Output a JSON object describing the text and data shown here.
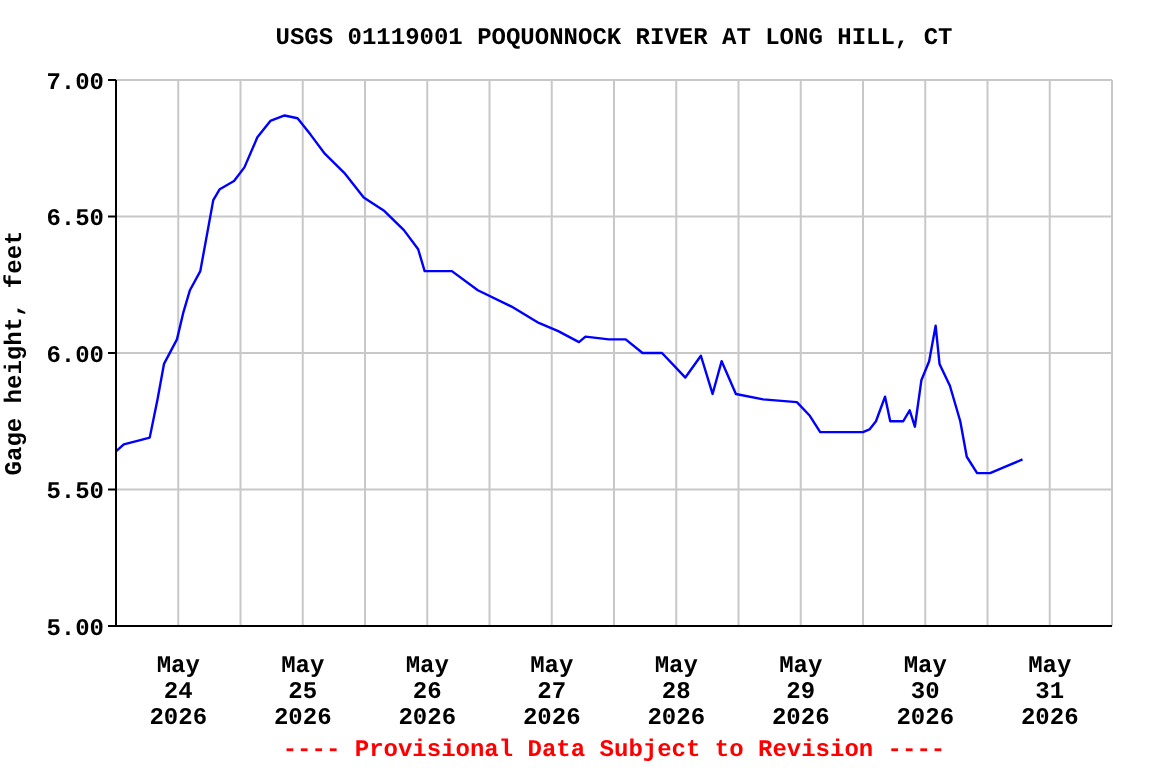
{
  "chart_data": {
    "type": "line",
    "title": "USGS 01119001 POQUONNOCK RIVER AT LONG HILL, CT",
    "ylabel": "Gage height, feet",
    "annotations": [
      "---- Provisional Data Subject to Revision ----"
    ],
    "x": [
      "2026-05-24T00:00",
      "2026-05-24T01:30",
      "2026-05-24T04:30",
      "2026-05-24T06:30",
      "2026-05-24T08:00",
      "2026-05-24T09:15",
      "2026-05-24T11:45",
      "2026-05-24T13:00",
      "2026-05-24T14:15",
      "2026-05-24T16:15",
      "2026-05-24T17:30",
      "2026-05-24T18:45",
      "2026-05-24T20:00",
      "2026-05-24T22:45",
      "2026-05-25T00:45",
      "2026-05-25T03:15",
      "2026-05-25T05:45",
      "2026-05-25T08:30",
      "2026-05-25T11:00",
      "2026-05-25T13:30",
      "2026-05-25T16:15",
      "2026-05-25T20:00",
      "2026-05-25T23:45",
      "2026-05-26T03:45",
      "2026-05-26T07:30",
      "2026-05-26T10:15",
      "2026-05-26T11:30",
      "2026-05-26T16:45",
      "2026-05-26T21:45",
      "2026-05-27T04:15",
      "2026-05-27T09:30",
      "2026-05-27T13:15",
      "2026-05-27T17:15",
      "2026-05-27T18:30",
      "2026-05-27T23:00",
      "2026-05-28T02:15",
      "2026-05-28T05:30",
      "2026-05-28T09:15",
      "2026-05-28T11:45",
      "2026-05-28T13:45",
      "2026-05-28T16:45",
      "2026-05-28T19:00",
      "2026-05-28T20:45",
      "2026-05-28T23:30",
      "2026-05-29T04:45",
      "2026-05-29T11:15",
      "2026-05-29T13:45",
      "2026-05-29T15:45",
      "2026-05-29T20:15",
      "2026-05-30T00:00",
      "2026-05-30T01:15",
      "2026-05-30T02:30",
      "2026-05-30T04:15",
      "2026-05-30T05:15",
      "2026-05-30T07:45",
      "2026-05-30T09:00",
      "2026-05-30T10:00",
      "2026-05-30T11:15",
      "2026-05-30T12:45",
      "2026-05-30T14:00",
      "2026-05-30T14:45",
      "2026-05-30T16:45",
      "2026-05-30T18:45",
      "2026-05-30T20:00",
      "2026-05-30T22:00",
      "2026-05-31T00:30",
      "2026-05-31T03:00",
      "2026-05-31T06:45"
    ],
    "series": [
      {
        "color": "#0000ff",
        "values": [
          5.64,
          5.665,
          5.68,
          5.69,
          5.83,
          5.96,
          6.05,
          6.15,
          6.23,
          6.3,
          6.43,
          6.56,
          6.6,
          6.63,
          6.68,
          6.79,
          6.85,
          6.87,
          6.86,
          6.8,
          6.73,
          6.66,
          6.57,
          6.52,
          6.45,
          6.38,
          6.3,
          6.3,
          6.23,
          6.17,
          6.11,
          6.08,
          6.04,
          6.06,
          6.05,
          6.05,
          6.0,
          6.0,
          5.95,
          5.91,
          5.99,
          5.85,
          5.97,
          5.85,
          5.83,
          5.82,
          5.77,
          5.71,
          5.71,
          5.71,
          5.72,
          5.75,
          5.84,
          5.75,
          5.75,
          5.79,
          5.73,
          5.9,
          5.97,
          6.1,
          5.96,
          5.88,
          5.75,
          5.62,
          5.56,
          5.56,
          5.58,
          5.61
        ]
      }
    ],
    "xlim": [
      "2026-05-24T00:00",
      "2026-06-01T00:00"
    ],
    "xticks": [
      {
        "value": "2026-05-24T12:00",
        "label": "May\n24\n2026"
      },
      {
        "value": "2026-05-25T00:00",
        "label": null
      },
      {
        "value": "2026-05-25T12:00",
        "label": "May\n25\n2026"
      },
      {
        "value": "2026-05-26T00:00",
        "label": null
      },
      {
        "value": "2026-05-26T12:00",
        "label": "May\n26\n2026"
      },
      {
        "value": "2026-05-27T00:00",
        "label": null
      },
      {
        "value": "2026-05-27T12:00",
        "label": "May\n27\n2026"
      },
      {
        "value": "2026-05-28T00:00",
        "label": null
      },
      {
        "value": "2026-05-28T12:00",
        "label": "May\n28\n2026"
      },
      {
        "value": "2026-05-29T00:00",
        "label": null
      },
      {
        "value": "2026-05-29T12:00",
        "label": "May\n29\n2026"
      },
      {
        "value": "2026-05-30T00:00",
        "label": null
      },
      {
        "value": "2026-05-30T12:00",
        "label": "May\n30\n2026"
      },
      {
        "value": "2026-05-31T00:00",
        "label": null
      },
      {
        "value": "2026-05-31T12:00",
        "label": "May\n31\n2026"
      }
    ],
    "ylim": [
      5,
      7
    ],
    "yticks": [
      {
        "value": 5,
        "label": "5.00"
      },
      {
        "value": 5.5,
        "label": "5.50"
      },
      {
        "value": 6,
        "label": "6.00"
      },
      {
        "value": 6.5,
        "label": "6.50"
      },
      {
        "value": 7,
        "label": "7.00"
      }
    ],
    "grid": true,
    "legend": false,
    "marker": "none",
    "line_style": "solid"
  }
}
